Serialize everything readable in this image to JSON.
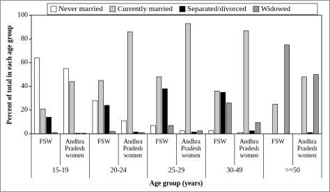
{
  "chart_data": {
    "type": "bar",
    "y_label": "Percent of total in each age group",
    "x_label": "Age group (years)",
    "groups": [
      "15-19",
      "20-24",
      "25-29",
      "30-49",
      ">=50"
    ],
    "categories": [
      "FSW",
      "Andhra Pradesh women",
      "FSW",
      "Andhra Pradesh women",
      "FSW",
      "Andhra Pradesh women",
      "FSW",
      "Andhra Pradesh women",
      "FSW",
      "Andhra Pradesh women"
    ],
    "series": [
      {
        "name": "Never married",
        "color": "#ffffff",
        "values": [
          64,
          55,
          28,
          11,
          7,
          2.5,
          2.5,
          1,
          0,
          0
        ]
      },
      {
        "name": "Currently married",
        "color": "#c8c8c8",
        "values": [
          21,
          44,
          45,
          86,
          48,
          93,
          36,
          87,
          25,
          48
        ]
      },
      {
        "name": "Separated/divorced",
        "color": "#000000",
        "values": [
          14,
          0.5,
          24,
          1.5,
          38,
          1.5,
          35,
          2.5,
          0,
          1
        ]
      },
      {
        "name": "Widowed",
        "color": "#999999",
        "values": [
          1,
          0.5,
          2,
          1,
          7,
          2.5,
          26,
          9.5,
          75,
          50
        ]
      }
    ],
    "ylim": [
      0,
      100
    ],
    "yticks": [
      0,
      20,
      40,
      60,
      80,
      100
    ]
  }
}
